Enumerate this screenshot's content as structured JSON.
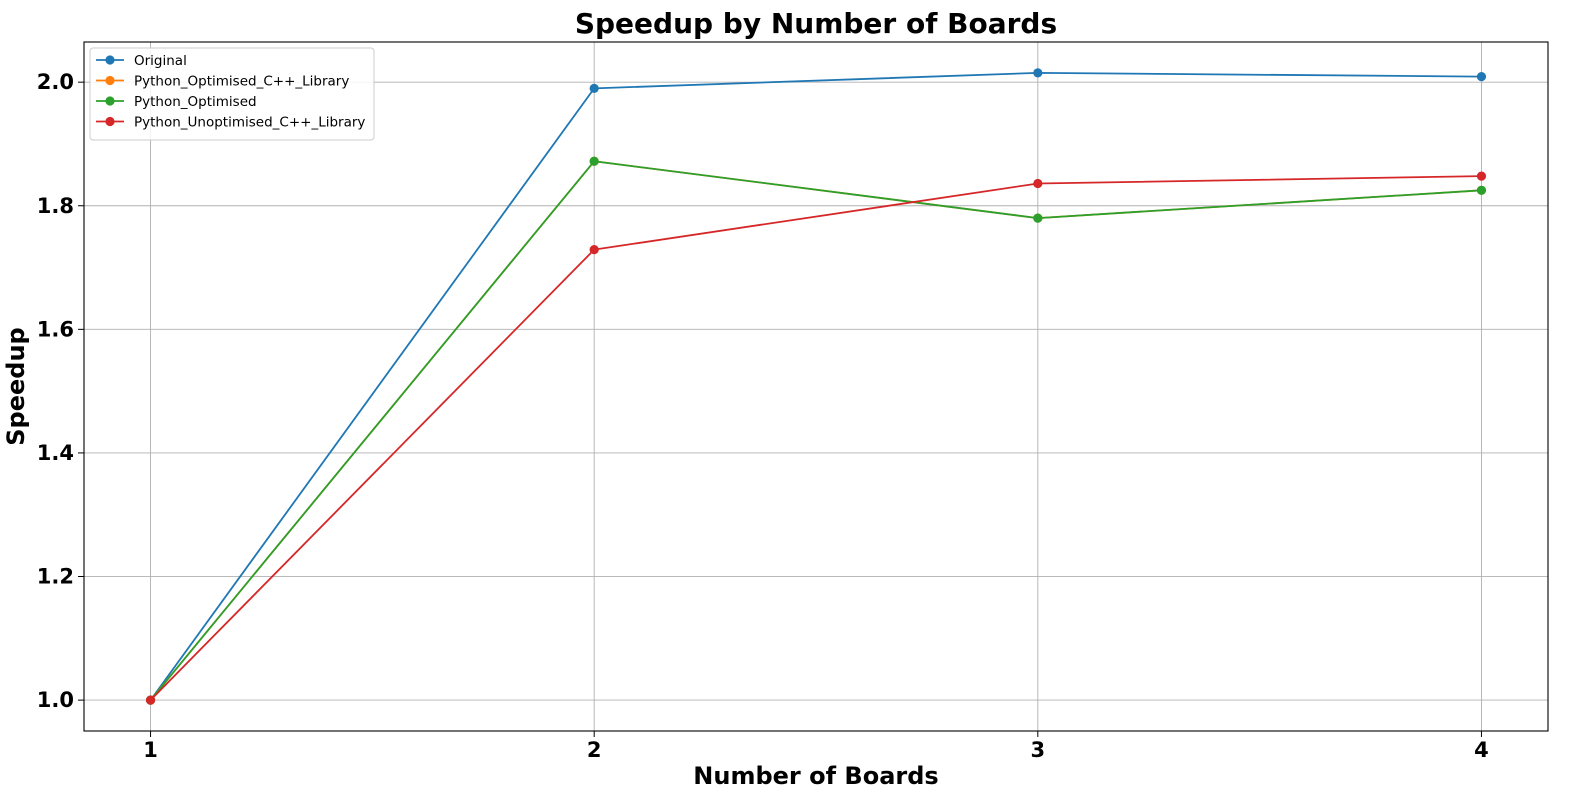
{
  "chart_data": {
    "type": "line",
    "title": "Speedup by Number of Boards",
    "xlabel": "Number of Boards",
    "ylabel": "Speedup",
    "x": [
      1,
      2,
      3,
      4
    ],
    "x_tick_labels": [
      "1",
      "2",
      "3",
      "4"
    ],
    "xlim": [
      0.85,
      4.15
    ],
    "ylim": [
      0.95,
      2.065
    ],
    "y_ticks": [
      1.0,
      1.2,
      1.4,
      1.6,
      1.8,
      2.0
    ],
    "y_tick_labels": [
      "1.0",
      "1.2",
      "1.4",
      "1.6",
      "1.8",
      "2.0"
    ],
    "grid": true,
    "legend_position": "upper-left",
    "marker": "circle",
    "series": [
      {
        "name": "Original",
        "color": "#1f77b4",
        "values": [
          1.0,
          1.99,
          2.015,
          2.009
        ]
      },
      {
        "name": "Python_Optimised_C++_Library",
        "color": "#ff7f0e",
        "values": [
          1.0,
          1.872,
          1.78,
          1.825
        ]
      },
      {
        "name": "Python_Optimised",
        "color": "#2ca02c",
        "values": [
          1.0,
          1.872,
          1.78,
          1.825
        ]
      },
      {
        "name": "Python_Unoptimised_C++_Library",
        "color": "#d62728",
        "values": [
          1.0,
          1.729,
          1.836,
          1.848
        ]
      }
    ]
  }
}
